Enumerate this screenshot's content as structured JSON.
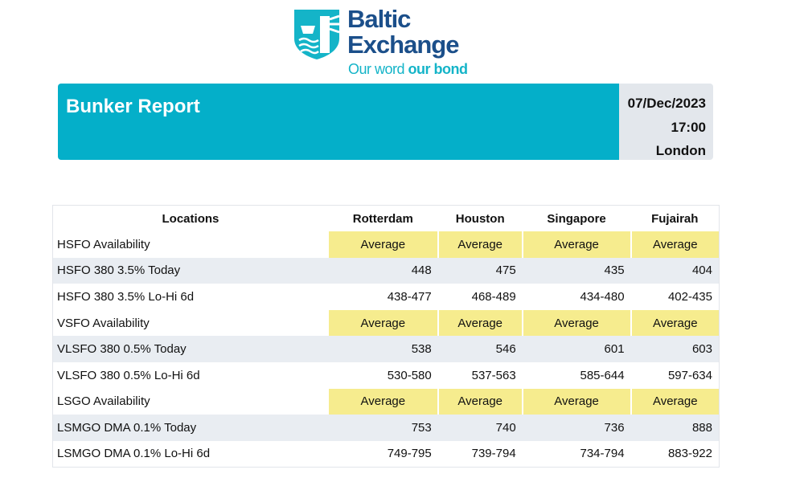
{
  "logo": {
    "name_line1": "Baltic",
    "name_line2": "Exchange",
    "tagline_light": "Our word",
    "tagline_bold": "our bond"
  },
  "banner": {
    "title": "Bunker Report",
    "date": "07/Dec/2023",
    "time": "17:00",
    "location": "London"
  },
  "table": {
    "headers": [
      "Locations",
      "Rotterdam",
      "Houston",
      "Singapore",
      "Fujairah"
    ],
    "rows": [
      {
        "label": "HSFO Availability",
        "values": [
          "Average",
          "Average",
          "Average",
          "Average"
        ],
        "type": "avail"
      },
      {
        "label": "HSFO 380 3.5% Today",
        "values": [
          "448",
          "475",
          "435",
          "404"
        ],
        "type": "today"
      },
      {
        "label": "HSFO 380 3.5% Lo-Hi 6d",
        "values": [
          "438-477",
          "468-489",
          "434-480",
          "402-435"
        ],
        "type": "range"
      },
      {
        "label": "VSFO Availability",
        "values": [
          "Average",
          "Average",
          "Average",
          "Average"
        ],
        "type": "avail"
      },
      {
        "label": "VLSFO 380 0.5% Today",
        "values": [
          "538",
          "546",
          "601",
          "603"
        ],
        "type": "today"
      },
      {
        "label": "VLSFO 380 0.5% Lo-Hi 6d",
        "values": [
          "530-580",
          "537-563",
          "585-644",
          "597-634"
        ],
        "type": "range"
      },
      {
        "label": "LSGO Availability",
        "values": [
          "Average",
          "Average",
          "Average",
          "Average"
        ],
        "type": "avail"
      },
      {
        "label": "LSMGO DMA 0.1% Today",
        "values": [
          "753",
          "740",
          "736",
          "888"
        ],
        "type": "today"
      },
      {
        "label": "LSMGO DMA 0.1% Lo-Hi 6d",
        "values": [
          "749-795",
          "739-794",
          "734-794",
          "883-922"
        ],
        "type": "range"
      }
    ]
  },
  "colors": {
    "teal": "#04afc9",
    "navy": "#1b4f8a",
    "availability": "#f6ec8e",
    "stripe": "#e9edf2"
  }
}
